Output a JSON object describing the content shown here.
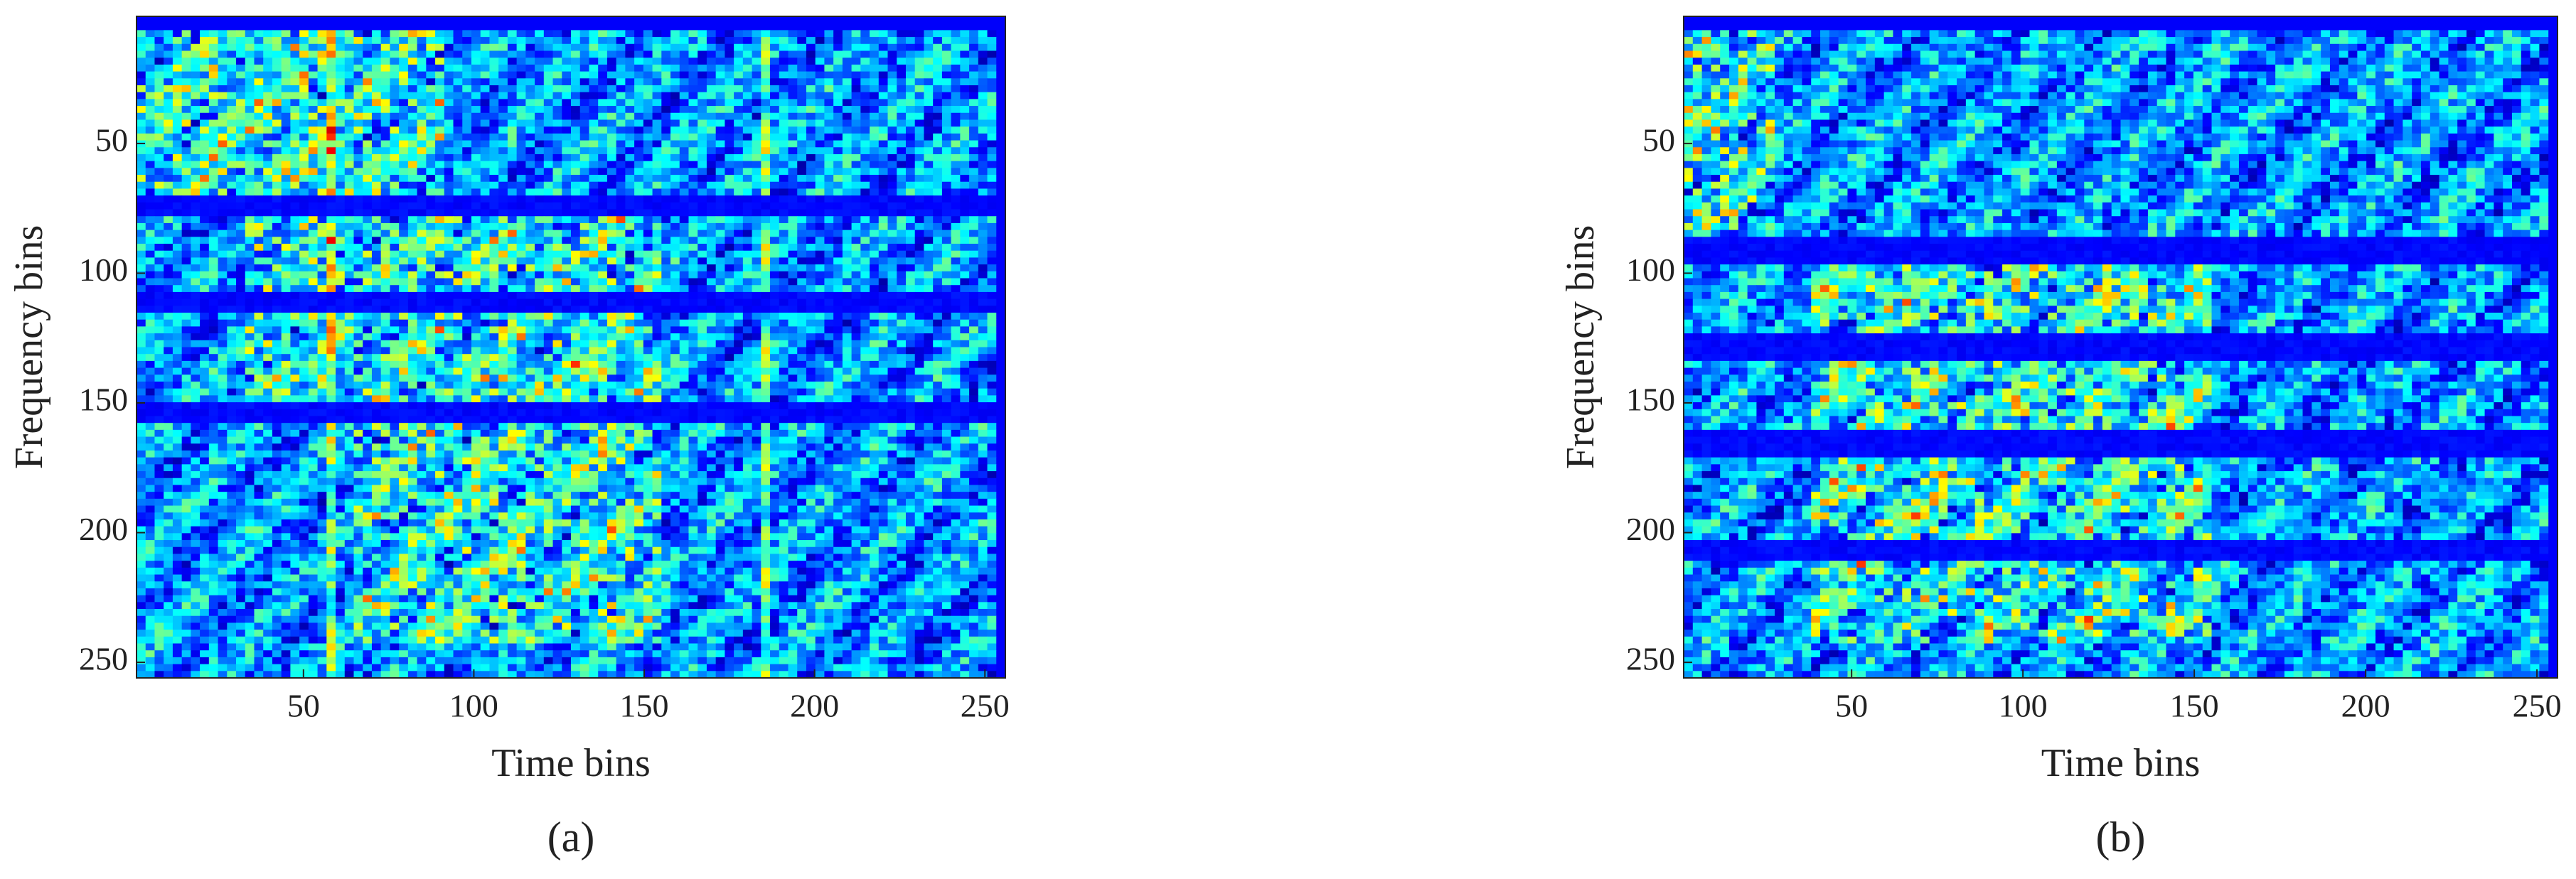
{
  "chart_data": [
    {
      "type": "heatmap",
      "caption": "(a)",
      "xlabel": "Time bins",
      "ylabel": "Frequency bins",
      "xlim": [
        1,
        256
      ],
      "ylim": [
        256,
        1
      ],
      "xticks": [
        50,
        100,
        150,
        200,
        250
      ],
      "yticks": [
        50,
        100,
        150,
        200,
        250
      ],
      "colormap": "jet"
    },
    {
      "type": "heatmap",
      "caption": "(b)",
      "xlabel": "Time bins",
      "ylabel": "Frequency bins",
      "xlim": [
        1,
        256
      ],
      "ylim": [
        256,
        1
      ],
      "xticks": [
        50,
        100,
        150,
        200,
        250
      ],
      "yticks": [
        50,
        100,
        150,
        200,
        250
      ],
      "colormap": "jet"
    }
  ]
}
